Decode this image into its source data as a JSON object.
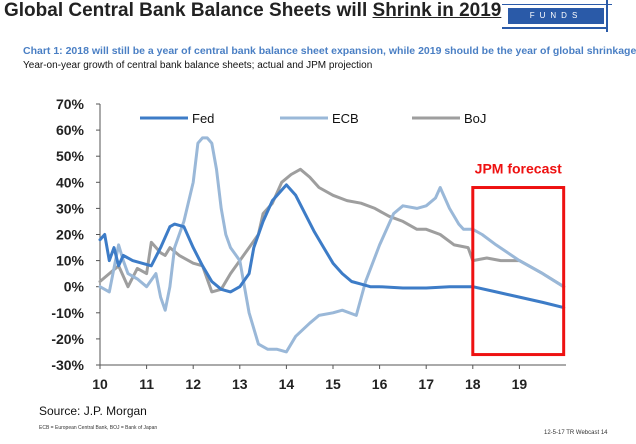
{
  "slide": {
    "headline_pre": "Global Central Bank Balance Sheets will ",
    "headline_emph": "Shrink in 2019",
    "logo_text": "FUNDS",
    "chart_title": "Chart 1: 2018 will still be a year of central bank balance sheet expansion, while 2019 should be the year of global shrinkage",
    "chart_subtitle": "Year-on-year growth of central bank balance sheets; actual and JPM projection",
    "source": "Source: J.P. Morgan",
    "footnote": "ECB = European Central Bank, BOJ = Bank of Japan",
    "slide_id": "12-5-17 TR Webcast",
    "page_number": "14"
  },
  "colors": {
    "fed": "#3d7cc7",
    "ecb": "#9ab8d8",
    "boj": "#9e9e9e",
    "forecast": "#ee1111",
    "subtitle": "#4a7fc4"
  },
  "chart_data": {
    "type": "line",
    "title": "Chart 1: 2018 will still be a year of central bank balance sheet expansion, while 2019 should be the year of global shrinkage",
    "subtitle": "Year-on-year growth of central bank balance sheets; actual and JPM projection",
    "xlabel": "",
    "ylabel": "",
    "xlim": [
      10,
      20
    ],
    "ylim": [
      -30,
      70
    ],
    "x_ticks": [
      10,
      11,
      12,
      13,
      14,
      15,
      16,
      17,
      18,
      19
    ],
    "x_tick_labels": [
      "10",
      "11",
      "12",
      "13",
      "14",
      "15",
      "16",
      "17",
      "18",
      "19"
    ],
    "y_ticks": [
      70,
      60,
      50,
      40,
      30,
      20,
      10,
      0,
      -10,
      -20,
      -30
    ],
    "y_tick_labels": [
      "70%",
      "60%",
      "50%",
      "40%",
      "30%",
      "20%",
      "10%",
      "0%",
      "-10%",
      "-20%",
      "-30%"
    ],
    "legend": [
      "Fed",
      "ECB",
      "BoJ"
    ],
    "legend_position": "top",
    "annotation": "JPM forecast",
    "forecast_range": {
      "x": [
        18,
        19.95
      ],
      "y": [
        -26,
        38
      ]
    },
    "series": [
      {
        "name": "Fed",
        "x": [
          10.0,
          10.1,
          10.2,
          10.3,
          10.4,
          10.5,
          10.7,
          10.9,
          11.1,
          11.3,
          11.5,
          11.6,
          11.8,
          12.0,
          12.2,
          12.4,
          12.6,
          12.8,
          13.0,
          13.2,
          13.3,
          13.5,
          13.7,
          13.9,
          14.0,
          14.2,
          14.4,
          14.6,
          14.8,
          15.0,
          15.2,
          15.4,
          15.6,
          15.8,
          16.0,
          16.5,
          17.0,
          17.5,
          18.0,
          18.5,
          19.0,
          19.5,
          19.95
        ],
        "y": [
          18,
          20,
          10,
          15,
          8,
          12,
          10,
          9,
          8,
          15,
          23,
          24,
          23,
          15,
          8,
          2,
          -1,
          -2,
          0,
          5,
          15,
          25,
          33,
          37,
          39,
          35,
          28,
          21,
          15,
          9,
          5,
          2,
          1,
          0,
          0,
          -0.5,
          -0.5,
          0,
          0,
          -2,
          -4,
          -6,
          -8
        ]
      },
      {
        "name": "ECB",
        "x": [
          10.0,
          10.2,
          10.4,
          10.5,
          10.6,
          10.8,
          11.0,
          11.2,
          11.3,
          11.4,
          11.5,
          11.6,
          11.8,
          12.0,
          12.1,
          12.2,
          12.3,
          12.4,
          12.5,
          12.6,
          12.7,
          12.8,
          13.0,
          13.2,
          13.4,
          13.6,
          13.8,
          14.0,
          14.2,
          14.5,
          14.7,
          15.0,
          15.2,
          15.5,
          15.7,
          16.0,
          16.3,
          16.5,
          16.8,
          17.0,
          17.2,
          17.3,
          17.5,
          17.7,
          17.8,
          18.0,
          18.2,
          18.5,
          19.0,
          19.5,
          19.95
        ],
        "y": [
          0,
          -2,
          16,
          10,
          5,
          3,
          0,
          5,
          -4,
          -9,
          0,
          15,
          25,
          40,
          55,
          57,
          57,
          55,
          45,
          30,
          20,
          15,
          10,
          -10,
          -22,
          -24,
          -24,
          -25,
          -19,
          -14,
          -11,
          -10,
          -9,
          -11,
          2,
          16,
          28,
          31,
          30,
          31,
          34,
          38,
          30,
          24,
          22,
          22,
          20,
          16,
          10,
          5,
          0
        ]
      },
      {
        "name": "BoJ",
        "x": [
          10.0,
          10.2,
          10.4,
          10.6,
          10.8,
          11.0,
          11.1,
          11.3,
          11.4,
          11.5,
          11.7,
          11.9,
          12.0,
          12.2,
          12.4,
          12.6,
          12.8,
          13.0,
          13.2,
          13.4,
          13.5,
          13.7,
          13.9,
          14.1,
          14.3,
          14.5,
          14.7,
          15.0,
          15.3,
          15.6,
          15.9,
          16.2,
          16.5,
          16.8,
          17.0,
          17.3,
          17.6,
          17.9,
          18.0,
          18.3,
          18.6,
          19.0,
          19.5,
          19.95
        ],
        "y": [
          2,
          5,
          8,
          0,
          7,
          5,
          17,
          13,
          12,
          15,
          12,
          10,
          9,
          8,
          -2,
          -1,
          5,
          10,
          15,
          20,
          28,
          32,
          40,
          43,
          45,
          42,
          38,
          35,
          33,
          32,
          30,
          27,
          25,
          22,
          22,
          20,
          16,
          15,
          10,
          11,
          10,
          10,
          5,
          0
        ]
      }
    ]
  }
}
